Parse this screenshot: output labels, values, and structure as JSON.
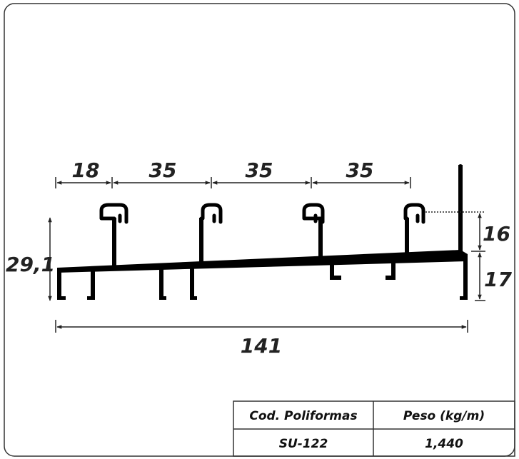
{
  "dimensions": {
    "top": [
      "18",
      "35",
      "35",
      "35"
    ],
    "overall_width": "141",
    "total_height": "29,1",
    "upper_height": "16",
    "lower_height": "17"
  },
  "spec_table": {
    "headers": [
      "Cod. Poliformas",
      "Peso (kg/m)"
    ],
    "row": [
      "SU-122",
      "1,440"
    ]
  },
  "colors": {
    "profile": "#000000",
    "text": "#222222",
    "border": "#333333"
  }
}
